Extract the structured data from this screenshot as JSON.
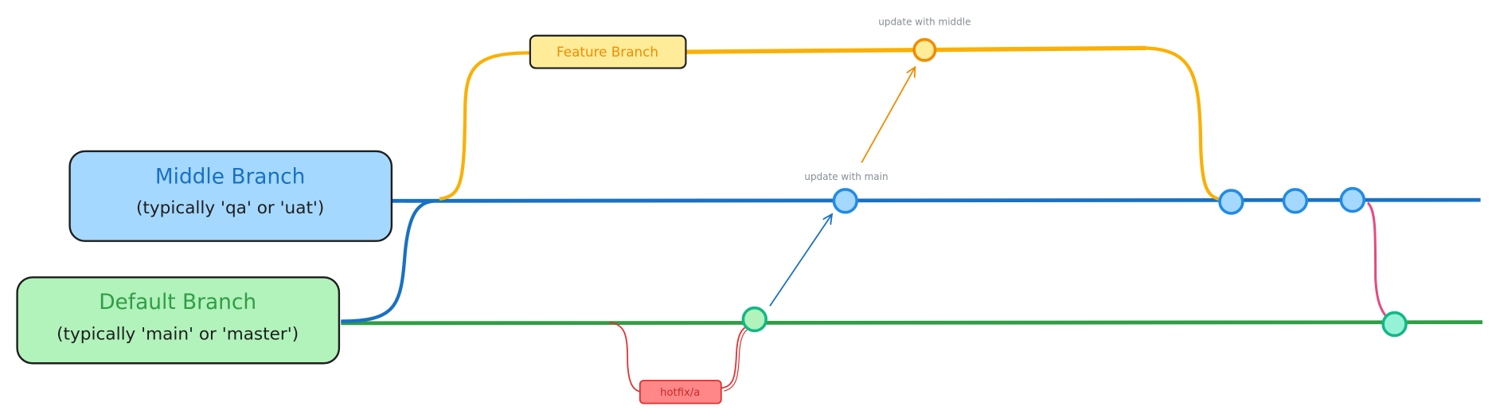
{
  "boxes": {
    "middle": {
      "title": "Middle Branch",
      "subtitle": "(typically 'qa' or 'uat')"
    },
    "default": {
      "title": "Default Branch",
      "subtitle": "(typically 'main' or 'master')"
    },
    "feature": {
      "label": "Feature Branch"
    },
    "hotfix": {
      "label": "hotfix/a"
    }
  },
  "annotations": {
    "update_middle": "update with middle",
    "update_main": "update with main"
  },
  "colors": {
    "middle_line": "#1971c2",
    "default_line": "#2f9e44",
    "feature_line": "#fab005",
    "hotfix_line": "#e03131",
    "merge_line": "#e64980",
    "middle_fill": "#a5d8ff",
    "default_fill": "#b2f2bb",
    "feature_fill": "#ffec99",
    "hotfix_fill": "#ff8787"
  }
}
